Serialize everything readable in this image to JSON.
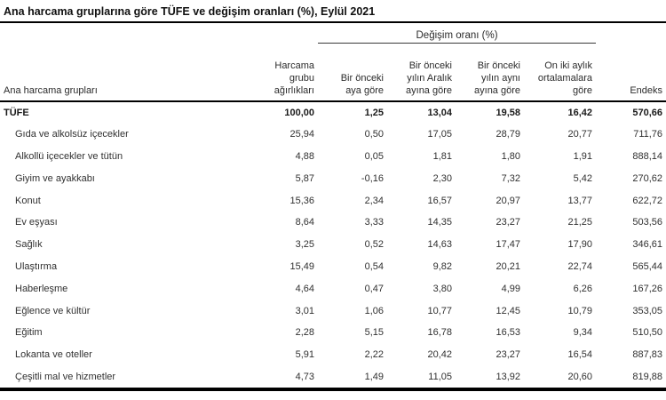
{
  "title": "Ana harcama gruplarına göre TÜFE ve değişim oranları (%), Eylül 2021",
  "chart_data": {
    "type": "table",
    "title": "Ana harcama gruplarına göre TÜFE ve değişim oranları (%), Eylül 2021",
    "spanner_header": "Değişim oranı (%)",
    "row_header": "Ana harcama grupları",
    "columns": [
      "Harcama\ngrubu\nağırlıkları",
      "Bir önceki\naya göre",
      "Bir önceki\nyılın Aralık\nayına göre",
      "Bir önceki\nyılın aynı\nayına göre",
      "On iki aylık\nortalamalara\ngöre",
      "Endeks"
    ],
    "rows": [
      {
        "label": "TÜFE",
        "bold": true,
        "values": [
          "100,00",
          "1,25",
          "13,04",
          "19,58",
          "16,42",
          "570,66"
        ]
      },
      {
        "label": "Gıda ve alkolsüz içecekler",
        "bold": false,
        "values": [
          "25,94",
          "0,50",
          "17,05",
          "28,79",
          "20,77",
          "711,76"
        ]
      },
      {
        "label": "Alkollü içecekler ve tütün",
        "bold": false,
        "values": [
          "4,88",
          "0,05",
          "1,81",
          "1,80",
          "1,91",
          "888,14"
        ]
      },
      {
        "label": "Giyim ve ayakkabı",
        "bold": false,
        "values": [
          "5,87",
          "-0,16",
          "2,30",
          "7,32",
          "5,42",
          "270,62"
        ]
      },
      {
        "label": "Konut",
        "bold": false,
        "values": [
          "15,36",
          "2,34",
          "16,57",
          "20,97",
          "13,77",
          "622,72"
        ]
      },
      {
        "label": "Ev eşyası",
        "bold": false,
        "values": [
          "8,64",
          "3,33",
          "14,35",
          "23,27",
          "21,25",
          "503,56"
        ]
      },
      {
        "label": "Sağlık",
        "bold": false,
        "values": [
          "3,25",
          "0,52",
          "14,63",
          "17,47",
          "17,90",
          "346,61"
        ]
      },
      {
        "label": "Ulaştırma",
        "bold": false,
        "values": [
          "15,49",
          "0,54",
          "9,82",
          "20,21",
          "22,74",
          "565,44"
        ]
      },
      {
        "label": "Haberleşme",
        "bold": false,
        "values": [
          "4,64",
          "0,47",
          "3,80",
          "4,99",
          "6,26",
          "167,26"
        ]
      },
      {
        "label": "Eğlence ve kültür",
        "bold": false,
        "values": [
          "3,01",
          "1,06",
          "10,77",
          "12,45",
          "10,79",
          "353,05"
        ]
      },
      {
        "label": "Eğitim",
        "bold": false,
        "values": [
          "2,28",
          "5,15",
          "16,78",
          "16,53",
          "9,34",
          "510,50"
        ]
      },
      {
        "label": "Lokanta ve oteller",
        "bold": false,
        "values": [
          "5,91",
          "2,22",
          "20,42",
          "23,27",
          "16,54",
          "887,83"
        ]
      },
      {
        "label": "Çeşitli mal ve hizmetler",
        "bold": false,
        "values": [
          "4,73",
          "1,49",
          "11,05",
          "13,92",
          "20,60",
          "819,88"
        ]
      }
    ]
  }
}
